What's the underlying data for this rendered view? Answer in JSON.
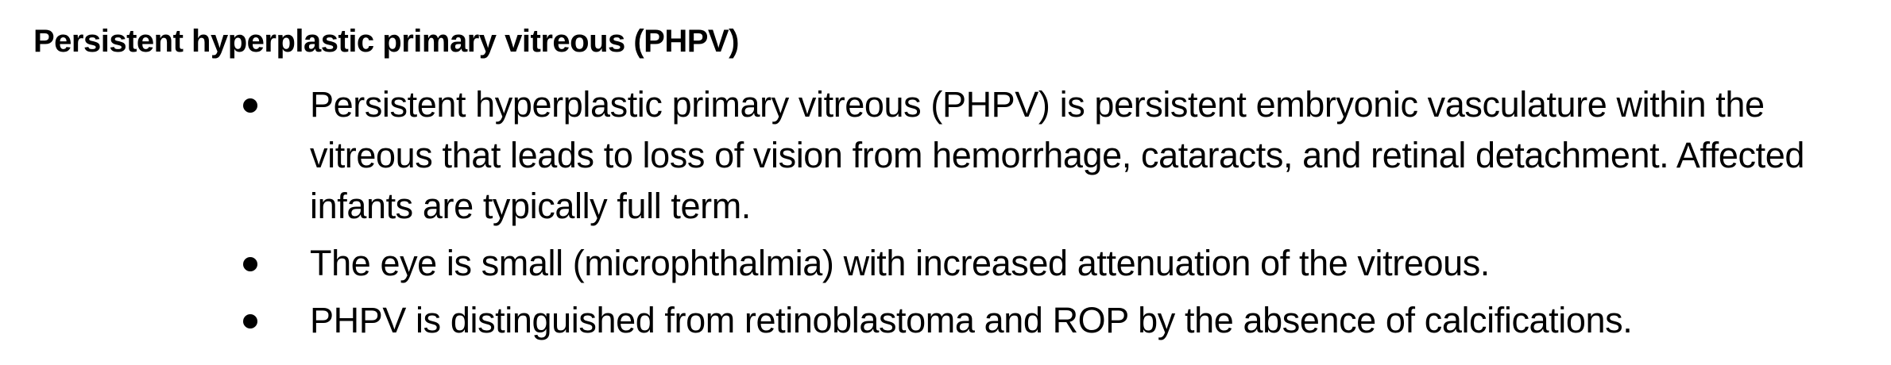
{
  "heading": "Persistent hyperplastic primary vitreous (PHPV)",
  "bullets": [
    {
      "text": "Persistent hyperplastic primary vitreous (PHPV) is persistent embryonic vasculature within the vitreous that leads to loss of vision from hemorrhage, cataracts, and retinal detachment. Affected infants are typically full term."
    },
    {
      "text": "The eye is small (microphthalmia) with increased attenuation of the vitreous."
    },
    {
      "text": "PHPV is distinguished from retinoblastoma and ROP by the absence of calcifications."
    }
  ]
}
